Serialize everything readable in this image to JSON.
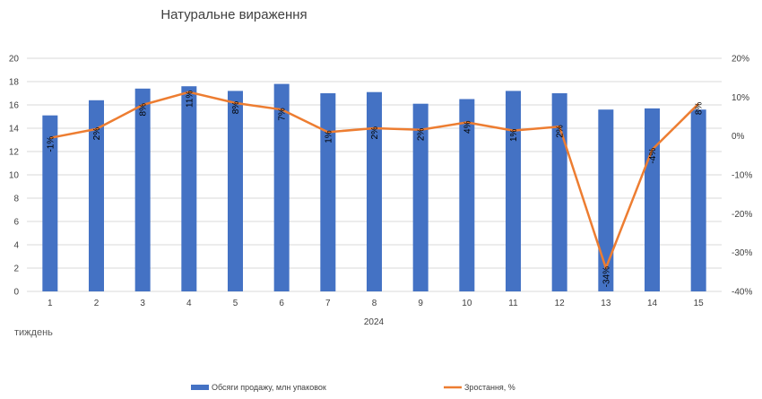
{
  "chart_data": {
    "type": "bar",
    "title": "Натуральне вираження",
    "xlabel": "тиждень",
    "x_group_label": "2024",
    "categories": [
      "1",
      "2",
      "3",
      "4",
      "5",
      "6",
      "7",
      "8",
      "9",
      "10",
      "11",
      "12",
      "13",
      "14",
      "15"
    ],
    "series": [
      {
        "name": "Обсяги продажу, млн упаковок",
        "type": "bar",
        "axis": "left",
        "color": "#4472C4",
        "values": [
          15.1,
          16.4,
          17.4,
          17.6,
          17.2,
          17.8,
          17.0,
          17.1,
          16.1,
          16.5,
          17.2,
          17.0,
          15.6,
          15.7,
          15.6
        ]
      },
      {
        "name": "Зростання, %",
        "type": "line",
        "axis": "right",
        "color": "#ED7D31",
        "values": [
          -0.5,
          1.8,
          8.0,
          11.3,
          8.5,
          6.8,
          1.0,
          2.0,
          1.6,
          3.5,
          1.4,
          2.4,
          -34.0,
          -3.5,
          8.3
        ],
        "labels": [
          "-1%",
          "2%",
          "8%",
          "11%",
          "8%",
          "7%",
          "1%",
          "2%",
          "2%",
          "4%",
          "1%",
          "2%",
          "-34%",
          "-4%",
          "8%"
        ]
      }
    ],
    "yleft": {
      "min": 0,
      "max": 20,
      "ticks": [
        "0",
        "2",
        "4",
        "6",
        "8",
        "10",
        "12",
        "14",
        "16",
        "18",
        "20"
      ]
    },
    "yright": {
      "min": -40,
      "max": 20,
      "ticks": [
        "-40%",
        "-30%",
        "-20%",
        "-10%",
        "0%",
        "10%",
        "20%"
      ]
    },
    "grid": true,
    "legend": "bottom"
  }
}
